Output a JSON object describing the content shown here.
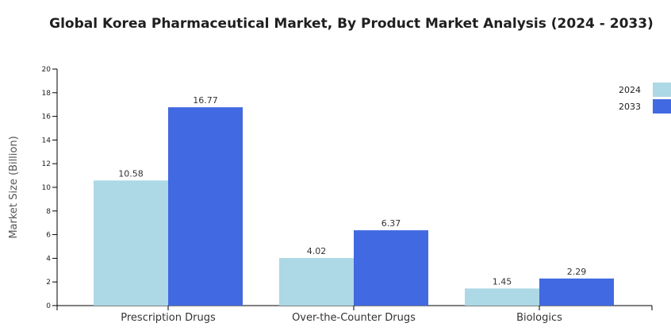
{
  "chart_data": {
    "type": "bar",
    "title": "Global Korea Pharmaceutical Market, By Product Market Analysis (2024 - 2033)",
    "xlabel": "",
    "ylabel": "Market Size (Billion)",
    "categories": [
      "Prescription Drugs",
      "Over-the-Counter Drugs",
      "Biologics"
    ],
    "series": [
      {
        "name": "2024",
        "values": [
          10.58,
          4.02,
          1.45
        ],
        "color": "#add8e6"
      },
      {
        "name": "2033",
        "values": [
          16.77,
          6.37,
          2.29
        ],
        "color": "#4169e1"
      }
    ],
    "data_labels": [
      [
        "10.58",
        "4.02",
        "1.45"
      ],
      [
        "16.77",
        "6.37",
        "2.29"
      ]
    ],
    "ylim": [
      0,
      20
    ],
    "yticks": [
      "0",
      "2",
      "4",
      "6",
      "8",
      "10",
      "12",
      "14",
      "16",
      "18",
      "20"
    ],
    "grid": false,
    "legend_position": "top-right"
  }
}
